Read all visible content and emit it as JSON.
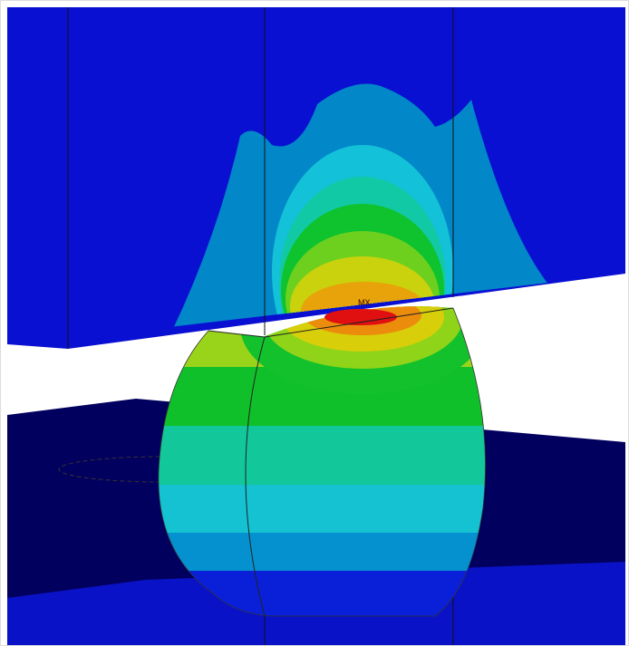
{
  "annotation": "MX"
}
